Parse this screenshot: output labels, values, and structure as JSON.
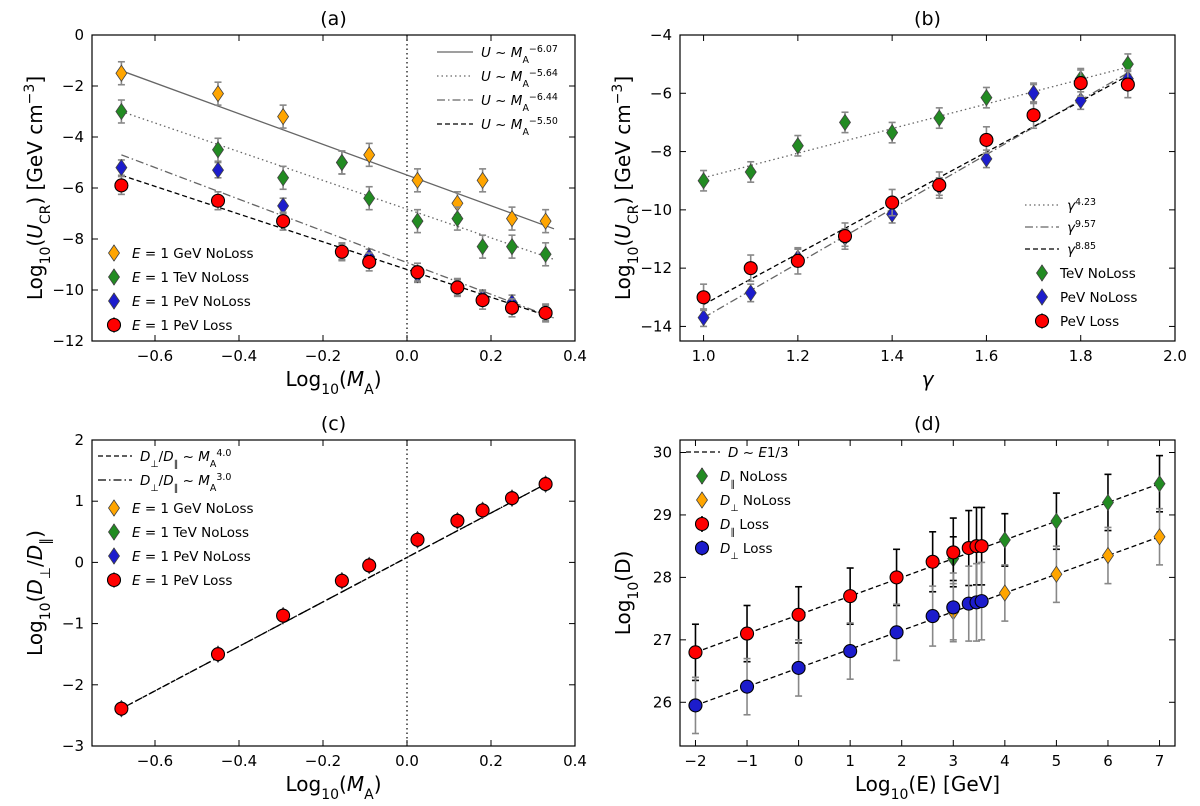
{
  "chart_data": [
    {
      "id": "a",
      "type": "scatter",
      "title": "(a)",
      "xlabel": "Log10(MA)",
      "ylabel": "Log10(UCR) [GeV cm^-3]",
      "xlim": [
        -0.75,
        0.4
      ],
      "ylim": [
        -12,
        0
      ],
      "xticks": [
        -0.6,
        -0.4,
        -0.2,
        0.0,
        0.2,
        0.4
      ],
      "xtick_labels": [
        "−0.6",
        "−0.4",
        "−0.2",
        "0.0",
        "0.2",
        "0.4"
      ],
      "yticks": [
        -12,
        -10,
        -8,
        -6,
        -4,
        -2,
        0
      ],
      "ytick_labels": [
        "−12",
        "−10",
        "−8",
        "−6",
        "−4",
        "−2",
        "0"
      ],
      "vline": 0,
      "x": [
        -0.68,
        -0.45,
        -0.295,
        -0.155,
        -0.09,
        0.025,
        0.12,
        0.18,
        0.25,
        0.33
      ],
      "series": [
        {
          "name": "E = 1 GeV NoLoss",
          "legend_label": "E = 1 GeV NoLoss",
          "marker": "diamond",
          "color": "#ffa500",
          "err": 0.45,
          "values": [
            -1.5,
            -2.3,
            -3.2,
            -5.0,
            -4.7,
            -5.7,
            -6.6,
            -5.7,
            -7.2,
            -7.3
          ]
        },
        {
          "name": "E = 1 TeV NoLoss",
          "legend_label": "E = 1 TeV NoLoss",
          "marker": "diamond",
          "color": "#228b22",
          "err": 0.45,
          "values": [
            -3.0,
            -4.5,
            -5.6,
            -5.0,
            -6.4,
            -7.3,
            -7.2,
            -8.3,
            -8.3,
            -8.6
          ]
        },
        {
          "name": "E = 1 PeV NoLoss",
          "legend_label": "E = 1 PeV NoLoss",
          "marker": "diamond",
          "color": "#1c1ccc",
          "err": 0.3,
          "values": [
            -5.2,
            -5.3,
            -6.7,
            -8.5,
            -8.7,
            -9.4,
            -9.9,
            -10.3,
            -10.5,
            -10.9
          ]
        },
        {
          "name": "E = 1 PeV Loss",
          "legend_label": "E = 1 PeV Loss",
          "marker": "circle",
          "color": "#ff0000",
          "err": 0.35,
          "values": [
            -5.9,
            -6.5,
            -7.3,
            -8.5,
            -8.9,
            -9.3,
            -9.9,
            -10.4,
            -10.7,
            -10.9
          ]
        }
      ],
      "fits": [
        {
          "label": "U ~ MA^-6.07",
          "style": "solid",
          "color": "#666666",
          "x": [
            -0.68,
            0.35
          ],
          "y": [
            -1.4,
            -7.6
          ]
        },
        {
          "label": "U ~ MA^-5.64",
          "style": "dotted",
          "color": "#666666",
          "x": [
            -0.68,
            0.35
          ],
          "y": [
            -3.0,
            -8.8
          ]
        },
        {
          "label": "U ~ MA^-6.44",
          "style": "dashdot",
          "color": "#666666",
          "x": [
            -0.68,
            0.35
          ],
          "y": [
            -4.7,
            -11.1
          ]
        },
        {
          "label": "U ~ MA^-5.50",
          "style": "dashed",
          "color": "#000000",
          "x": [
            -0.68,
            0.35
          ],
          "y": [
            -5.5,
            -11.1
          ]
        }
      ]
    },
    {
      "id": "b",
      "type": "scatter",
      "title": "(b)",
      "xlabel": "γ",
      "ylabel": "Log10(UCR) [GeV cm^-3]",
      "xlim": [
        0.95,
        2.0
      ],
      "ylim": [
        -14.5,
        -4
      ],
      "xticks": [
        1.0,
        1.2,
        1.4,
        1.6,
        1.8,
        2.0
      ],
      "xtick_labels": [
        "1.0",
        "1.2",
        "1.4",
        "1.6",
        "1.8",
        "2.0"
      ],
      "yticks": [
        -14,
        -12,
        -10,
        -8,
        -6,
        -4
      ],
      "ytick_labels": [
        "−14",
        "−12",
        "−10",
        "−8",
        "−6",
        "−4"
      ],
      "x": [
        1.0,
        1.1,
        1.2,
        1.3,
        1.4,
        1.5,
        1.6,
        1.7,
        1.8,
        1.9
      ],
      "series": [
        {
          "name": "TeV NoLoss",
          "legend_label": "TeV NoLoss",
          "marker": "diamond",
          "color": "#228b22",
          "err": 0.35,
          "values": [
            -9.0,
            -8.7,
            -7.8,
            -7.0,
            -7.35,
            -6.85,
            -6.15,
            -6.0,
            -5.5,
            -5.0
          ]
        },
        {
          "name": "PeV NoLoss",
          "legend_label": "PeV NoLoss",
          "marker": "diamond",
          "color": "#1c1ccc",
          "err": 0.3,
          "values": [
            -13.7,
            -12.85,
            -11.65,
            -10.95,
            -10.15,
            -9.2,
            -8.25,
            -6.0,
            -6.25,
            -5.5
          ]
        },
        {
          "name": "PeV Loss",
          "legend_label": "PeV Loss",
          "marker": "circle",
          "color": "#ff0000",
          "err": 0.45,
          "values": [
            -13.0,
            -12.0,
            -11.75,
            -10.9,
            -9.75,
            -9.15,
            -7.6,
            -6.75,
            -5.65,
            -5.7
          ]
        }
      ],
      "fits": [
        {
          "label": "γ^4.23",
          "style": "dotted",
          "color": "#666666",
          "x": [
            1.0,
            1.9
          ],
          "y": [
            -8.9,
            -5.1
          ]
        },
        {
          "label": "γ^9.57",
          "style": "dashdot",
          "color": "#666666",
          "x": [
            1.0,
            1.9
          ],
          "y": [
            -13.7,
            -5.3
          ]
        },
        {
          "label": "γ^8.85",
          "style": "dashed",
          "color": "#000000",
          "x": [
            1.0,
            1.9
          ],
          "y": [
            -13.25,
            -5.4
          ]
        }
      ]
    },
    {
      "id": "c",
      "type": "scatter",
      "title": "(c)",
      "xlabel": "Log10(MA)",
      "ylabel": "Log10(D⊥/D∥)",
      "xlim": [
        -0.75,
        0.4
      ],
      "ylim": [
        -3,
        2
      ],
      "xticks": [
        -0.6,
        -0.4,
        -0.2,
        0.0,
        0.2,
        0.4
      ],
      "xtick_labels": [
        "−0.6",
        "−0.4",
        "−0.2",
        "0.0",
        "0.2",
        "0.4"
      ],
      "yticks": [
        -3,
        -2,
        -1,
        0,
        1,
        2
      ],
      "ytick_labels": [
        "−3",
        "−2",
        "−1",
        "0",
        "1",
        "2"
      ],
      "vline": 0,
      "x": [
        -0.68,
        -0.45,
        -0.295,
        -0.155,
        -0.09,
        0.025,
        0.12,
        0.18,
        0.25,
        0.33
      ],
      "series": [
        {
          "name": "E = 1 GeV NoLoss",
          "legend_label": "E = 1 GeV NoLoss",
          "marker": "diamond",
          "color": "#ffa500",
          "err": 0.06,
          "values": [
            -2.39,
            -1.5,
            -0.87,
            -0.3,
            -0.05,
            0.37,
            0.68,
            0.85,
            1.05,
            1.28
          ]
        },
        {
          "name": "E = 1 TeV NoLoss",
          "legend_label": "E = 1 TeV NoLoss",
          "marker": "diamond",
          "color": "#228b22",
          "err": 0.06,
          "values": [
            -2.39,
            -1.5,
            -0.87,
            -0.3,
            -0.05,
            0.37,
            0.68,
            0.85,
            1.05,
            1.28
          ]
        },
        {
          "name": "E = 1 PeV NoLoss",
          "legend_label": "E = 1 PeV NoLoss",
          "marker": "diamond",
          "color": "#1c1ccc",
          "err": 0.06,
          "values": [
            -2.39,
            -1.5,
            -0.87,
            -0.3,
            -0.05,
            0.37,
            0.68,
            0.85,
            1.05,
            1.28
          ]
        },
        {
          "name": "E = 1 PeV Loss",
          "legend_label": "E = 1 PeV Loss",
          "marker": "circle",
          "color": "#ff0000",
          "err": 0.06,
          "values": [
            -2.39,
            -1.5,
            -0.87,
            -0.3,
            -0.05,
            0.37,
            0.68,
            0.85,
            1.05,
            1.28
          ]
        }
      ],
      "fits": [
        {
          "label": "D⊥/D∥ ~ MA^4.0",
          "style": "dashed",
          "color": "#000000",
          "x": [
            -0.68,
            0.33
          ],
          "y": [
            -2.39,
            1.28
          ]
        },
        {
          "label": "D⊥/D∥ ~ MA^3.0",
          "style": "dashdot",
          "color": "#000000",
          "x": [
            -0.68,
            0.33
          ],
          "y": [
            -2.39,
            1.28
          ]
        }
      ]
    },
    {
      "id": "d",
      "type": "scatter",
      "title": "(d)",
      "xlabel": "Log10(E) [GeV]",
      "ylabel": "Log10(D)",
      "xlim": [
        -2.3,
        7.3
      ],
      "ylim": [
        25.3,
        30.2
      ],
      "xticks": [
        -2,
        -1,
        0,
        1,
        2,
        3,
        4,
        5,
        6,
        7
      ],
      "xtick_labels": [
        "−2",
        "−1",
        "0",
        "1",
        "2",
        "3",
        "4",
        "5",
        "6",
        "7"
      ],
      "yticks": [
        26,
        27,
        28,
        29,
        30
      ],
      "ytick_labels": [
        "26",
        "27",
        "28",
        "29",
        "30"
      ],
      "series": [
        {
          "name": "D∥ NoLoss",
          "legend_label": "D∥ NoLoss",
          "marker": "diamond",
          "color": "#228b22",
          "errcolor": "#000000",
          "x": [
            3,
            4,
            5,
            6,
            7
          ],
          "values": [
            28.3,
            28.6,
            28.9,
            29.2,
            29.5
          ],
          "err": [
            0.35,
            0.42,
            0.45,
            0.45,
            0.45
          ]
        },
        {
          "name": "D⊥ NoLoss",
          "legend_label": "D⊥ NoLoss",
          "marker": "diamond",
          "color": "#ffa500",
          "errcolor": "#888888",
          "x": [
            3,
            4,
            5,
            6,
            7
          ],
          "values": [
            27.45,
            27.75,
            28.05,
            28.35,
            28.65
          ],
          "err": [
            0.45,
            0.45,
            0.45,
            0.45,
            0.45
          ]
        },
        {
          "name": "D∥ Loss",
          "legend_label": "D∥ Loss",
          "marker": "circle",
          "color": "#ff0000",
          "errcolor": "#000000",
          "x": [
            -2,
            -1,
            0,
            1,
            1.9,
            2.6,
            3,
            3.3,
            3.45,
            3.55
          ],
          "values": [
            26.8,
            27.1,
            27.4,
            27.7,
            28.0,
            28.25,
            28.4,
            28.47,
            28.5,
            28.5
          ],
          "err": [
            0.45,
            0.45,
            0.45,
            0.45,
            0.45,
            0.48,
            0.55,
            0.6,
            0.62,
            0.62
          ]
        },
        {
          "name": "D⊥ Loss",
          "legend_label": "D⊥ Loss",
          "marker": "circle",
          "color": "#1c1ccc",
          "errcolor": "#888888",
          "x": [
            -2,
            -1,
            0,
            1,
            1.9,
            2.6,
            3,
            3.3,
            3.45,
            3.55
          ],
          "values": [
            25.95,
            26.25,
            26.55,
            26.82,
            27.12,
            27.38,
            27.52,
            27.58,
            27.6,
            27.62
          ],
          "err": [
            0.45,
            0.45,
            0.45,
            0.45,
            0.45,
            0.48,
            0.55,
            0.6,
            0.62,
            0.62
          ]
        }
      ],
      "fits": [
        {
          "label": "D ~ E^1/3",
          "style": "dashed",
          "color": "#000000",
          "x": [
            -2,
            7
          ],
          "y": [
            26.8,
            29.5
          ]
        },
        {
          "label": "",
          "style": "dashed",
          "color": "#000000",
          "x": [
            -2,
            7
          ],
          "y": [
            25.95,
            28.65
          ]
        }
      ]
    }
  ]
}
